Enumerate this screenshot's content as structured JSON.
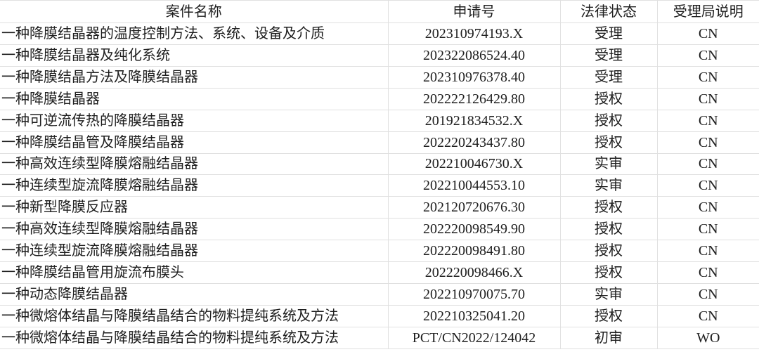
{
  "table": {
    "columns": [
      {
        "key": "case-name",
        "label": "案件名称"
      },
      {
        "key": "application-number",
        "label": "申请号"
      },
      {
        "key": "legal-status",
        "label": "法律状态"
      },
      {
        "key": "office-note",
        "label": "受理局说明"
      }
    ],
    "rows": [
      [
        "一种降膜结晶器的温度控制方法、系统、设备及介质",
        "202310974193.X",
        "受理",
        "CN"
      ],
      [
        "一种降膜结晶器及纯化系统",
        "202322086524.40",
        "受理",
        "CN"
      ],
      [
        "一种降膜结晶方法及降膜结晶器",
        "202310976378.40",
        "受理",
        "CN"
      ],
      [
        "一种降膜结晶器",
        "202222126429.80",
        "授权",
        "CN"
      ],
      [
        "一种可逆流传热的降膜结晶器",
        "201921834532.X",
        "授权",
        "CN"
      ],
      [
        "一种降膜结晶管及降膜结晶器",
        "202220243437.80",
        "授权",
        "CN"
      ],
      [
        "一种高效连续型降膜熔融结晶器",
        "202210046730.X",
        "实审",
        "CN"
      ],
      [
        "一种连续型旋流降膜熔融结晶器",
        "202210044553.10",
        "实审",
        "CN"
      ],
      [
        "一种新型降膜反应器",
        "202120720676.30",
        "授权",
        "CN"
      ],
      [
        "一种高效连续型降膜熔融结晶器",
        "202220098549.90",
        "授权",
        "CN"
      ],
      [
        "一种连续型旋流降膜熔融结晶器",
        "202220098491.80",
        "授权",
        "CN"
      ],
      [
        "一种降膜结晶管用旋流布膜头",
        "202220098466.X",
        "授权",
        "CN"
      ],
      [
        "一种动态降膜结晶器",
        "202210970075.70",
        "实审",
        "CN"
      ],
      [
        "一种微熔体结晶与降膜结晶结合的物料提纯系统及方法",
        "202210325041.20",
        "授权",
        "CN"
      ],
      [
        "一种微熔体结晶与降膜结晶结合的物料提纯系统及方法",
        "PCT/CN2022/124042",
        "初审",
        "WO"
      ]
    ],
    "colors": {
      "border": "#e0e0e0",
      "text": "#1e1e1e",
      "background": "#ffffff"
    }
  }
}
